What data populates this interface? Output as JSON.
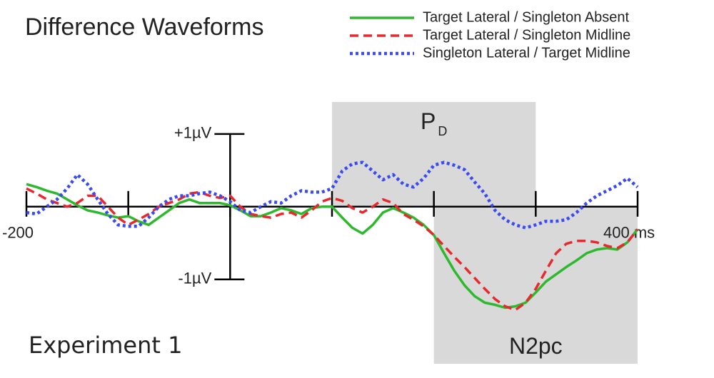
{
  "chart_data": {
    "type": "line",
    "title": "Difference Waveforms",
    "annotation": "Experiment 1",
    "x": [
      -200,
      -190,
      -180,
      -170,
      -160,
      -150,
      -140,
      -130,
      -120,
      -110,
      -100,
      -90,
      -80,
      -70,
      -60,
      -50,
      -40,
      -30,
      -20,
      -10,
      0,
      10,
      20,
      30,
      40,
      50,
      60,
      70,
      80,
      90,
      100,
      110,
      120,
      130,
      140,
      150,
      160,
      170,
      180,
      190,
      200,
      210,
      220,
      230,
      240,
      250,
      260,
      270,
      280,
      290,
      300,
      310,
      320,
      330,
      340,
      350,
      360,
      370,
      380,
      390,
      400
    ],
    "series": [
      {
        "name": "Target Lateral / Singleton Absent",
        "color": "#2db82d",
        "dash": "solid",
        "values": [
          0.31,
          0.27,
          0.22,
          0.18,
          0.1,
          0.02,
          -0.05,
          -0.08,
          -0.12,
          -0.15,
          -0.13,
          -0.2,
          -0.25,
          -0.15,
          -0.05,
          0.05,
          0.1,
          0.05,
          0.05,
          0.05,
          0.02,
          -0.05,
          -0.13,
          -0.13,
          -0.08,
          -0.02,
          -0.05,
          -0.1,
          -0.02,
          0,
          0,
          -0.15,
          -0.29,
          -0.37,
          -0.25,
          -0.08,
          -0.02,
          -0.08,
          -0.15,
          -0.25,
          -0.39,
          -0.64,
          -0.88,
          -1.08,
          -1.23,
          -1.32,
          -1.35,
          -1.39,
          -1.37,
          -1.32,
          -1.18,
          -1.03,
          -0.93,
          -0.83,
          -0.74,
          -0.64,
          -0.59,
          -0.57,
          -0.59,
          -0.49,
          -0.31
        ]
      },
      {
        "name": "Target Lateral / Singleton Midline",
        "color": "#e8282d",
        "dash": "dashed",
        "values": [
          0.25,
          0.18,
          0.1,
          0.05,
          0,
          0.05,
          0.15,
          0.15,
          0,
          -0.15,
          -0.25,
          -0.18,
          -0.1,
          0,
          0.05,
          0.1,
          0.18,
          0.2,
          0.15,
          0.12,
          0.15,
          0,
          -0.1,
          -0.13,
          -0.15,
          -0.1,
          -0.08,
          -0.15,
          -0.05,
          0.07,
          0.12,
          0.08,
          -0.02,
          -0.08,
          0,
          0.1,
          0.05,
          -0.1,
          -0.18,
          -0.27,
          -0.39,
          -0.54,
          -0.69,
          -0.83,
          -0.98,
          -1.13,
          -1.27,
          -1.37,
          -1.42,
          -1.32,
          -1.13,
          -0.88,
          -0.64,
          -0.51,
          -0.47,
          -0.47,
          -0.49,
          -0.54,
          -0.57,
          -0.49,
          -0.31
        ]
      },
      {
        "name": "Singleton Lateral / Target Midline",
        "color": "#3a4bf0",
        "dash": "dotted",
        "values": [
          -0.08,
          -0.1,
          0,
          0.1,
          0.25,
          0.44,
          0.31,
          0.1,
          -0.1,
          -0.25,
          -0.27,
          -0.27,
          -0.15,
          0,
          0.1,
          0.15,
          0.15,
          0.18,
          0.2,
          0.15,
          0.07,
          -0.05,
          -0.08,
          0,
          0.07,
          0.05,
          0.15,
          0.22,
          0.2,
          0.2,
          0.25,
          0.49,
          0.59,
          0.61,
          0.49,
          0.37,
          0.44,
          0.31,
          0.27,
          0.39,
          0.57,
          0.61,
          0.57,
          0.51,
          0.34,
          0.18,
          -0.05,
          -0.18,
          -0.25,
          -0.29,
          -0.25,
          -0.2,
          -0.2,
          -0.18,
          -0.08,
          0.05,
          0.15,
          0.22,
          0.29,
          0.39,
          0.27
        ]
      }
    ],
    "regions": [
      {
        "label": "P",
        "subscript": "D",
        "x": [
          100,
          300
        ],
        "y": [
          0,
          1.44
        ],
        "color": "#d9d9d9"
      },
      {
        "label": "N2pc",
        "x": [
          200,
          400
        ],
        "y": [
          -2.16,
          0
        ],
        "color": "#d9d9d9"
      }
    ],
    "xlim": [
      -200,
      400
    ],
    "ylim": [
      -2.16,
      1.44
    ],
    "xticks": [
      -200,
      -100,
      0,
      100,
      200,
      300,
      {
        "value": 400,
        "label": "400 ms"
      }
    ],
    "yticks": [
      {
        "value": 1,
        "label": "+1µV"
      },
      {
        "value": -1,
        "label": "-1µV"
      }
    ],
    "legend": "top-right"
  }
}
